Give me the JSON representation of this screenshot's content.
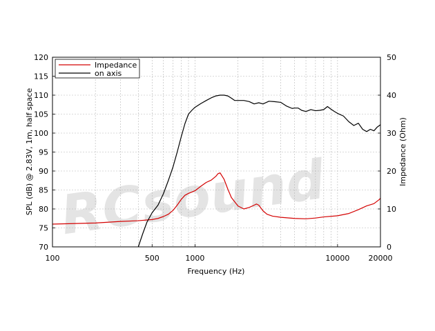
{
  "chart_data": {
    "type": "line",
    "x_scale": "log",
    "xlim": [
      100,
      20000
    ],
    "ylim_left": [
      70,
      120
    ],
    "ylim_right": [
      0,
      50
    ],
    "grid": true,
    "legend_position": "top-left",
    "xlabel": "Frequency (Hz)",
    "ylabel_left": "SPL (dB) @ 2.83V, 1m, half space",
    "ylabel_right": "Impedance (Ohm)",
    "x_ticks": [
      100,
      500,
      1000,
      10000,
      20000
    ],
    "x_tick_labels": [
      "100",
      "500",
      "1000",
      "10000",
      "20000"
    ],
    "y_left_ticks": [
      70,
      75,
      80,
      85,
      90,
      95,
      100,
      105,
      110,
      115,
      120
    ],
    "y_right_ticks": [
      0,
      10,
      20,
      30,
      40,
      50
    ],
    "watermark": "RCsound",
    "series": [
      {
        "name": "Impedance",
        "axis": "right",
        "color": "#d40000",
        "x": [
          100,
          200,
          300,
          400,
          500,
          550,
          600,
          650,
          700,
          750,
          800,
          850,
          900,
          1000,
          1100,
          1200,
          1300,
          1400,
          1450,
          1500,
          1600,
          1700,
          1800,
          2000,
          2200,
          2400,
          2600,
          2700,
          2800,
          3000,
          3200,
          3500,
          4000,
          5000,
          6000,
          7000,
          8000,
          10000,
          12000,
          14000,
          16000,
          18000,
          19500,
          20000
        ],
        "values": [
          6.0,
          6.3,
          6.7,
          6.9,
          7.2,
          7.5,
          8.0,
          8.6,
          9.6,
          11.0,
          12.5,
          13.6,
          14.1,
          14.8,
          16.0,
          17.0,
          17.6,
          18.6,
          19.3,
          19.5,
          17.8,
          15.2,
          13.0,
          10.8,
          10.0,
          10.4,
          11.0,
          11.3,
          11.0,
          9.5,
          8.6,
          8.1,
          7.8,
          7.5,
          7.4,
          7.6,
          7.9,
          8.2,
          8.8,
          9.8,
          10.8,
          11.4,
          12.4,
          12.8
        ]
      },
      {
        "name": "on axis",
        "axis": "left",
        "color": "#000000",
        "x": [
          400,
          430,
          460,
          500,
          550,
          600,
          650,
          700,
          750,
          800,
          850,
          900,
          950,
          1000,
          1100,
          1200,
          1300,
          1400,
          1500,
          1600,
          1700,
          1800,
          1900,
          2000,
          2200,
          2400,
          2600,
          2800,
          3000,
          3300,
          3600,
          4000,
          4400,
          4800,
          5000,
          5300,
          5600,
          6000,
          6500,
          7000,
          7500,
          8000,
          8500,
          9000,
          9500,
          10000,
          11000,
          12000,
          13000,
          14000,
          15000,
          16000,
          17000,
          18000,
          19000,
          20000
        ],
        "values": [
          70,
          73.5,
          76.5,
          79,
          81,
          84,
          87.5,
          91,
          95,
          99,
          102.5,
          105,
          106,
          106.8,
          107.8,
          108.6,
          109.3,
          109.8,
          110,
          110,
          109.8,
          109.2,
          108.6,
          108.6,
          108.6,
          108.3,
          107.7,
          108,
          107.7,
          108.4,
          108.3,
          108.1,
          107.1,
          106.5,
          106.6,
          106.6,
          106.0,
          105.7,
          106.2,
          105.9,
          106.0,
          106.2,
          107.0,
          106.3,
          105.7,
          105.2,
          104.5,
          103.0,
          102.0,
          102.6,
          101.0,
          100.4,
          101.0,
          100.6,
          101.6,
          102.2
        ]
      }
    ]
  }
}
